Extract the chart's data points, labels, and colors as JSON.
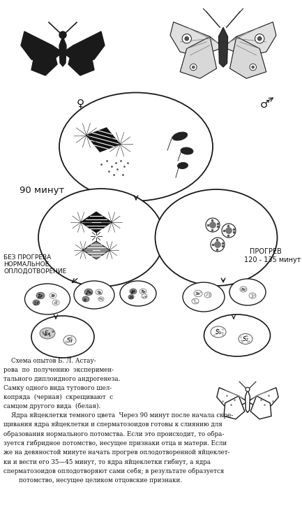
{
  "bg_color": "#ffffff",
  "line_color": "#1a1a1a",
  "text_color": "#111111",
  "dark_fill": "#1a1a1a",
  "mid_fill": "#555555",
  "light_fill": "#aaaaaa",
  "label_90min": "90 минут",
  "label_bez_line1": "БЕЗ ПРОГРЕВА",
  "label_bez_line2": "НОРМАЛЬНОЕ",
  "label_bez_line3": "ОПЛОДОТВОРЕНИЕ",
  "label_progrev_line1": "ПРОГРЕВ",
  "label_progrev_line2": "120 - 135 минут",
  "female_symbol": "♀",
  "male_symbol": "♂",
  "caption": "    Схема опытов Б. Л. Астау-\nрова  по  получению  эксперимен-\nтального диплоидного андрогенеза.\nСамку одного вида тутового шел-\nкопряда  (черная)  скрещивают  с\nсамцом другого вида  (белая).\n    Ядра яйцеклетки темного цвета  Через 90 минут после начала скре-\nщивания ядра яйцеклетки и сперматозоидов готовы к слиянию для\nобразования нормального потомства. Если это происходит, то обра-\nзуется гибридное потомство, несущее признаки отца и матери. Если\nже на девяностой минуте начать прогрев оплодотворенной яйцеклет-\nки и вести его 35—45 минут, то ядра яйцеклетки гибнут, а ядра\nсперматозоидов оплодотворяют сами себя; в результате образуется\n        потомство, несущее целиком отцовские признаки."
}
